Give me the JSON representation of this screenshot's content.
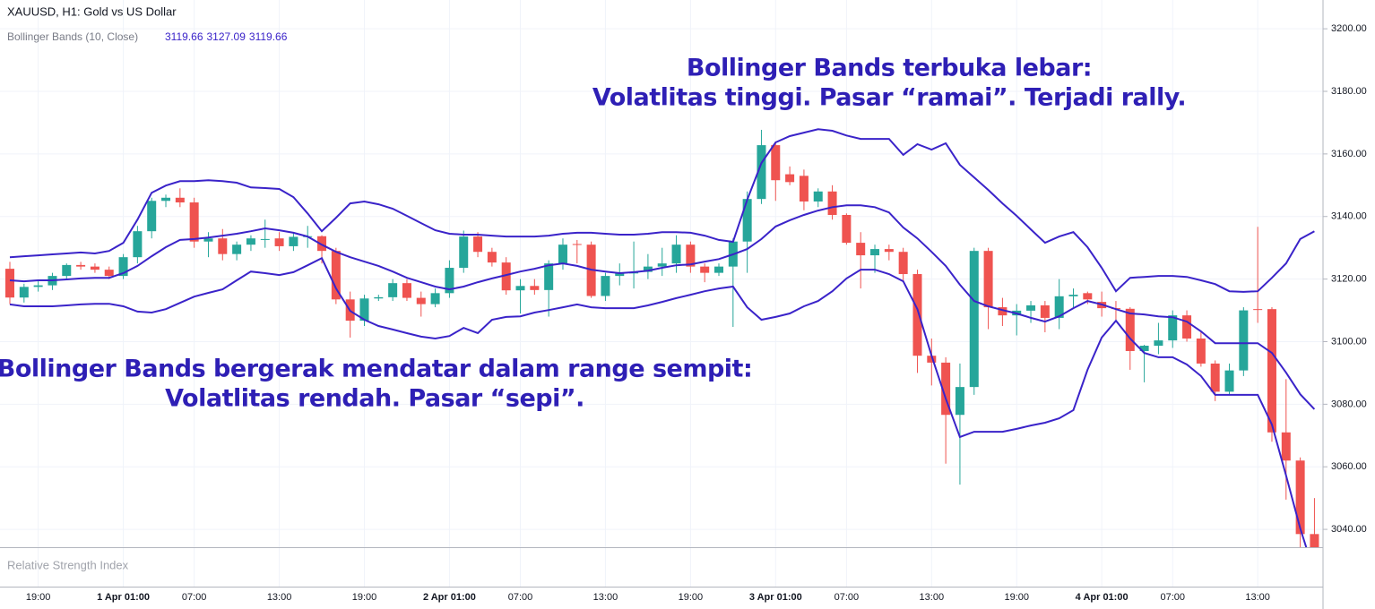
{
  "chart_data": {
    "type": "candlestick",
    "title": "XAUUSD, H1: Gold vs US Dollar",
    "indicator": {
      "name": "Bollinger Bands (10, Close)",
      "values": [
        3119.66,
        3127.09,
        3119.66
      ]
    },
    "pane_label": "Relative Strength Index",
    "annotations": [
      {
        "lines": [
          "Bollinger Bands terbuka lebar:",
          "Volatlitas tinggi. Pasar “ramai”. Terjadi rally."
        ]
      },
      {
        "lines": [
          "Bollinger Bands bergerak mendatar dalam range sempit:",
          "Volatlitas rendah. Pasar “sepi”."
        ]
      }
    ],
    "categories": [
      null,
      null,
      "19:00",
      null,
      null,
      null,
      null,
      null,
      "1 Apr 01:00",
      null,
      null,
      null,
      null,
      "07:00",
      null,
      null,
      null,
      null,
      null,
      "13:00",
      null,
      null,
      null,
      null,
      null,
      "19:00",
      null,
      null,
      null,
      null,
      null,
      "2 Apr 01:00",
      null,
      null,
      null,
      null,
      "07:00",
      null,
      null,
      null,
      null,
      null,
      "13:00",
      null,
      null,
      null,
      null,
      null,
      "19:00",
      null,
      null,
      null,
      null,
      null,
      "3 Apr 01:00",
      null,
      null,
      null,
      null,
      "07:00",
      null,
      null,
      null,
      null,
      null,
      "13:00",
      null,
      null,
      null,
      null,
      null,
      "19:00",
      null,
      null,
      null,
      null,
      null,
      "4 Apr 01:00",
      null,
      null,
      null,
      null,
      "07:00",
      null,
      null,
      null,
      null,
      null,
      "13:00",
      null,
      null,
      null,
      null
    ],
    "open": [
      3123.3,
      3114.1,
      3117.5,
      3118,
      3121,
      3124.5,
      3124,
      3123,
      3121,
      3127,
      3135.3,
      3145,
      3146,
      3144.5,
      3132,
      3133,
      3128,
      3131,
      3132.5,
      3133,
      3130.5,
      3133.5,
      3133.7,
      3129,
      3113.5,
      3106.7,
      3113.8,
      3114.2,
      3118.7,
      3114,
      3112,
      3115.5,
      3123.6,
      3133.6,
      3128.7,
      3125.3,
      3116.4,
      3117.8,
      3116.5,
      3125,
      3131.2,
      3131,
      3114.6,
      3121,
      3121.8,
      3122.3,
      3124,
      3125,
      3131,
      3124,
      3122,
      3124,
      3132,
      3145.6,
      3162.8,
      3153.5,
      3153,
      3144.8,
      3148,
      3140.5,
      3131.6,
      3127.6,
      3129.6,
      3128.7,
      3121.6,
      3095.5,
      3093.3,
      3076.6,
      3085.5,
      3129,
      3111,
      3108.4,
      3109.9,
      3111.6,
      3107.6,
      3114.5,
      3115.5,
      3112.7,
      3110.7,
      3110.5,
      3097,
      3098.7,
      3100.4,
      3108.4,
      3101,
      3093,
      3084,
      3090.8,
      3110.4,
      3110.4,
      3071,
      3062,
      3038.5
    ],
    "high": [
      3125.5,
      3118.5,
      3119.5,
      3122,
      3125,
      3125.5,
      3125,
      3124,
      3128,
      3137,
      3146,
      3147,
      3149,
      3146,
      3135,
      3136,
      3132,
      3134,
      3139,
      3135,
      3135,
      3137,
      3134,
      3130,
      3116,
      3115,
      3115,
      3120,
      3120,
      3116,
      3117,
      3126,
      3135.5,
      3135,
      3130,
      3127,
      3120,
      3120,
      3126,
      3133,
      3132.5,
      3132,
      3122,
      3125,
      3132,
      3128,
      3130,
      3134,
      3132,
      3125,
      3125,
      3133,
      3148,
      3167.7,
      3164,
      3156,
      3155,
      3149,
      3150,
      3141,
      3135,
      3131,
      3131,
      3130,
      3123,
      3101,
      3095,
      3093,
      3130,
      3130,
      3114,
      3112,
      3113,
      3113,
      3120,
      3117,
      3116,
      3116,
      3113,
      3111,
      3099,
      3106,
      3110,
      3110,
      3103,
      3094,
      3093,
      3111,
      3136.7,
      3111,
      3088,
      3063,
      3050
    ],
    "low": [
      3112,
      3112.5,
      3116,
      3116.5,
      3120,
      3123,
      3122,
      3120,
      3120,
      3125,
      3133,
      3143,
      3143,
      3130,
      3127,
      3126,
      3126,
      3129,
      3130,
      3129,
      3129,
      3130,
      3125,
      3112,
      3101.3,
      3105,
      3113,
      3113,
      3113,
      3108,
      3111,
      3114,
      3122,
      3127,
      3124,
      3115,
      3109,
      3115,
      3108,
      3123,
      3125,
      3114,
      3113,
      3118,
      3117,
      3120,
      3121,
      3122,
      3122,
      3119,
      3121,
      3104.7,
      3122,
      3144,
      3145,
      3150,
      3142,
      3143,
      3139,
      3131,
      3117,
      3122,
      3126,
      3119,
      3090,
      3086,
      3061,
      3054.3,
      3083,
      3104,
      3105,
      3102,
      3106,
      3103,
      3104,
      3111,
      3112,
      3108,
      3107,
      3091,
      3087,
      3096,
      3098,
      3100,
      3092,
      3081,
      3083,
      3089,
      3106,
      3068,
      3049.5,
      3034,
      3030
    ],
    "close": [
      3114.1,
      3117.5,
      3118,
      3121,
      3124.5,
      3124,
      3123,
      3121,
      3127,
      3135.3,
      3145,
      3146,
      3144.5,
      3132,
      3133,
      3128,
      3131,
      3133,
      3132.8,
      3130.5,
      3133.5,
      3133.7,
      3129,
      3113.5,
      3106.7,
      3113.8,
      3114.2,
      3118.7,
      3114,
      3112,
      3115.5,
      3123.6,
      3133.6,
      3128.7,
      3125.3,
      3116.4,
      3117.8,
      3116.5,
      3125,
      3131,
      3131,
      3114.6,
      3121,
      3121.8,
      3122.3,
      3124,
      3125,
      3131,
      3124,
      3122,
      3124,
      3132,
      3145.6,
      3162.8,
      3151.6,
      3151,
      3144.8,
      3148,
      3140.5,
      3131.6,
      3127.6,
      3129.6,
      3128.7,
      3121.6,
      3095.5,
      3093.3,
      3076.6,
      3085.5,
      3129,
      3111,
      3108.4,
      3109.9,
      3111.6,
      3107.6,
      3114.5,
      3115,
      3113.5,
      3110.7,
      3110.5,
      3097,
      3098.7,
      3100.4,
      3108.4,
      3101,
      3093,
      3084,
      3090.8,
      3110,
      3110.2,
      3071,
      3062,
      3038.5,
      3034.3
    ],
    "up_color": "#26a69a",
    "down_color": "#ef5350",
    "series": [
      {
        "color": "#3a23c9",
        "values": [
          3127.0,
          3127.3,
          3127.6,
          3127.9,
          3128.2,
          3128.5,
          3128.2,
          3129.0,
          3131.6,
          3139.0,
          3147.6,
          3149.9,
          3151.3,
          3151.3,
          3151.6,
          3151.3,
          3150.8,
          3149.3,
          3149.1,
          3148.8,
          3146.2,
          3141.0,
          3135.3,
          3139.6,
          3144.2,
          3144.8,
          3143.9,
          3142.5,
          3140.2,
          3137.9,
          3135.6,
          3134.5,
          3134.2,
          3134.2,
          3133.9,
          3133.6,
          3133.6,
          3133.6,
          3133.9,
          3134.5,
          3134.8,
          3134.8,
          3134.5,
          3134.2,
          3134.2,
          3134.5,
          3135.0,
          3135.0,
          3134.8,
          3133.9,
          3132.5,
          3131.9,
          3145.3,
          3157.1,
          3163.7,
          3165.7,
          3166.8,
          3167.9,
          3167.4,
          3165.9,
          3164.8,
          3164.8,
          3164.8,
          3159.7,
          3163.1,
          3161.4,
          3163.4,
          3156.5,
          3152.5,
          3148.5,
          3144.2,
          3140.2,
          3135.9,
          3131.6,
          3133.6,
          3135.0,
          3130.2,
          3123.6,
          3116.1,
          3120.4,
          3120.7,
          3121.0,
          3121.0,
          3120.7,
          3119.6,
          3118.4,
          3116.1,
          3115.9,
          3116.1,
          3120.4,
          3125.0,
          3132.8,
          3135.3
        ]
      },
      {
        "color": "#3a23c9",
        "values": [
          3119.6,
          3119.3,
          3119.6,
          3119.6,
          3119.9,
          3120.2,
          3120.4,
          3120.4,
          3121.9,
          3124.2,
          3127.3,
          3130.2,
          3132.5,
          3132.8,
          3133.3,
          3133.9,
          3134.5,
          3135.3,
          3136.2,
          3135.6,
          3134.8,
          3133.6,
          3131.0,
          3128.7,
          3127.0,
          3125.6,
          3124.2,
          3122.4,
          3120.4,
          3119.0,
          3117.6,
          3116.7,
          3117.6,
          3119.0,
          3120.2,
          3121.3,
          3122.4,
          3123.3,
          3124.4,
          3125.0,
          3124.2,
          3123.0,
          3122.4,
          3121.9,
          3122.2,
          3122.7,
          3123.6,
          3124.4,
          3124.7,
          3125.6,
          3126.4,
          3127.9,
          3129.6,
          3132.8,
          3136.8,
          3138.8,
          3140.5,
          3141.9,
          3143.0,
          3143.6,
          3143.6,
          3143.0,
          3141.3,
          3136.5,
          3133.0,
          3128.7,
          3124.2,
          3118.2,
          3113.0,
          3111.3,
          3110.1,
          3109.0,
          3107.6,
          3106.4,
          3108.1,
          3110.7,
          3113.0,
          3111.9,
          3110.4,
          3109.0,
          3108.7,
          3108.1,
          3107.8,
          3106.4,
          3103.3,
          3099.5,
          3099.5,
          3099.5,
          3099.5,
          3096.4,
          3090.1,
          3083.2,
          3078.4
        ]
      },
      {
        "color": "#3a23c9",
        "values": [
          3111.9,
          3111.3,
          3111.3,
          3111.3,
          3111.6,
          3111.9,
          3112.1,
          3112.1,
          3111.3,
          3109.6,
          3109.3,
          3110.4,
          3112.4,
          3114.4,
          3115.6,
          3116.7,
          3119.6,
          3122.4,
          3121.9,
          3121.3,
          3122.2,
          3124.4,
          3126.7,
          3117.0,
          3109.8,
          3107.0,
          3105.0,
          3103.9,
          3102.7,
          3101.6,
          3101.0,
          3101.8,
          3104.4,
          3102.7,
          3107.0,
          3107.9,
          3108.1,
          3109.3,
          3110.1,
          3111.0,
          3111.9,
          3111.0,
          3110.7,
          3110.7,
          3110.7,
          3111.6,
          3112.7,
          3113.9,
          3115.0,
          3116.1,
          3117.0,
          3117.6,
          3111.0,
          3107.0,
          3107.9,
          3109.0,
          3111.3,
          3113.0,
          3116.1,
          3120.2,
          3123.0,
          3123.0,
          3121.6,
          3119.3,
          3110.4,
          3095.5,
          3081.8,
          3069.5,
          3071.2,
          3071.2,
          3071.2,
          3072.1,
          3073.2,
          3074.1,
          3075.5,
          3078.1,
          3091.0,
          3101.3,
          3106.7,
          3101.0,
          3096.4,
          3095.0,
          3095.0,
          3092.7,
          3089.0,
          3083.0,
          3083.0,
          3083.0,
          3083.0,
          3073.5,
          3057.2,
          3040.3,
          3026.0
        ]
      }
    ],
    "ylim": [
      3034.3,
      3209.2
    ],
    "yticks": [
      {
        "value": 3040,
        "label": "3040.00"
      },
      {
        "value": 3060,
        "label": "3060.00"
      },
      {
        "value": 3080,
        "label": "3080.00"
      },
      {
        "value": 3100,
        "label": "3100.00"
      },
      {
        "value": 3120,
        "label": "3120.00"
      },
      {
        "value": 3140,
        "label": "3140.00"
      },
      {
        "value": 3160,
        "label": "3160.00"
      },
      {
        "value": 3180,
        "label": "3180.00"
      },
      {
        "value": 3200,
        "label": "3200.00"
      }
    ],
    "grid": true
  }
}
